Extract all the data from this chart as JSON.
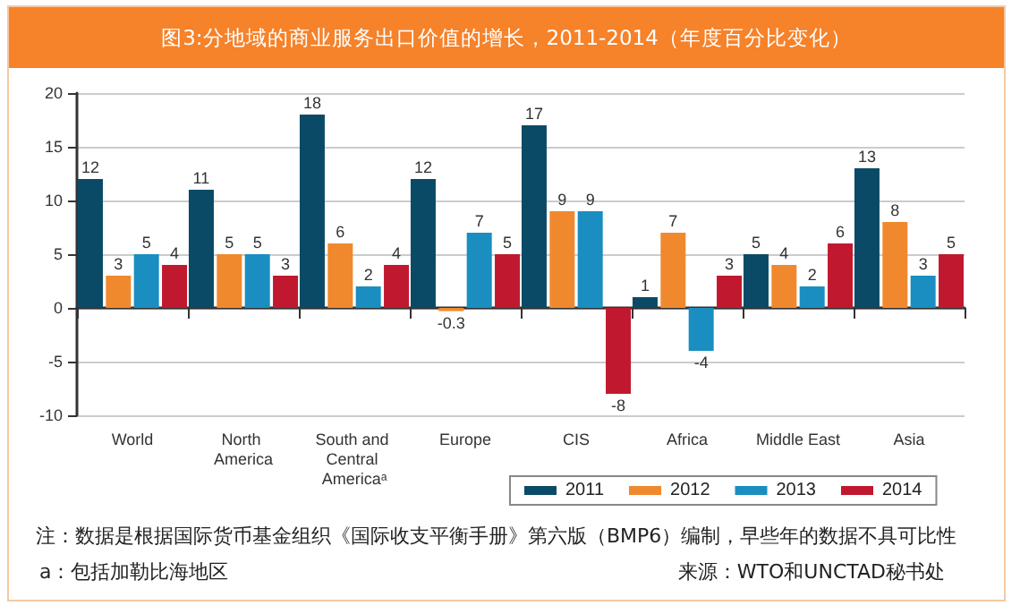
{
  "chart_data": {
    "type": "bar",
    "title": "图3:分地域的商业服务出口价值的增长，2011-2014（年度百分比变化）",
    "categories": [
      "World",
      "North America",
      "South and Central Americaᵃ",
      "Europe",
      "CIS",
      "Africa",
      "Middle East",
      "Asia"
    ],
    "series": [
      {
        "name": "2011",
        "color": "#0b4a66",
        "values": [
          12,
          11,
          18,
          12,
          17,
          1,
          5,
          13
        ]
      },
      {
        "name": "2012",
        "color": "#f0892e",
        "values": [
          3,
          5,
          6,
          -0.3,
          9,
          7,
          4,
          8
        ]
      },
      {
        "name": "2013",
        "color": "#1a8ec0",
        "values": [
          5,
          5,
          2,
          7,
          9,
          -4,
          2,
          3
        ]
      },
      {
        "name": "2014",
        "color": "#c0192f",
        "values": [
          4,
          3,
          4,
          5,
          -8,
          3,
          6,
          5
        ]
      }
    ],
    "ylim": [
      -10,
      20
    ],
    "yticks": [
      -10,
      -5,
      0,
      5,
      10,
      15,
      20
    ],
    "grid": "y",
    "legend": "bottom",
    "data_labels": true,
    "annotations": [
      "注：数据是根据国际货币基金组织《国际收支平衡手册》第六版（BMP6）编制，早些年的数据不具可比性",
      "a：包括加勒比海地区",
      "来源：WTO和UNCTAD秘书处"
    ]
  }
}
